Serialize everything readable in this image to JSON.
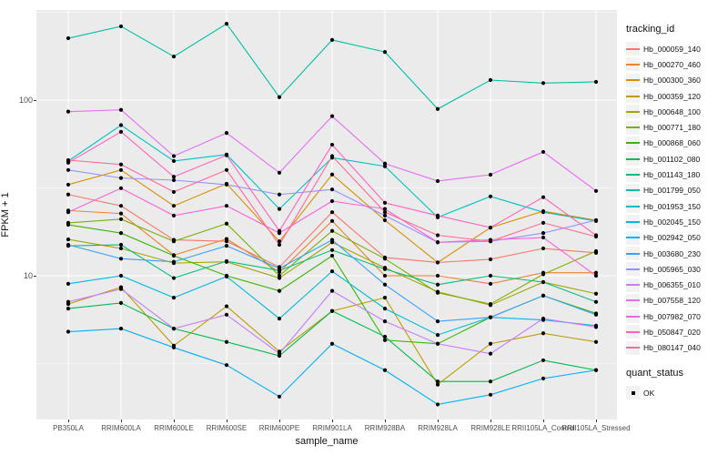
{
  "figure": {
    "y_axis": {
      "label": "FPKM + 1",
      "ticks": [
        "100",
        "10"
      ]
    },
    "x_axis": {
      "label": "sample_name"
    },
    "legend": {
      "tracking_title": "tracking_id",
      "quant_title": "quant_status",
      "quant_ok_label": "OK"
    }
  },
  "colors": {
    "panel_bg": "#EBEBEB",
    "grid_major": "#FFFFFF",
    "grid_minor": "#F5F5F5",
    "point": "#000000",
    "legend_key_bg": "#F2F2F2",
    "tick_text": "#4D4D4D",
    "title_text": "#111111"
  },
  "chart_data": {
    "type": "line",
    "title": "",
    "xlabel": "sample_name",
    "ylabel": "FPKM + 1",
    "y_scale": "log10",
    "ylim": [
      1.5,
      340
    ],
    "y_major_ticks": [
      10,
      100
    ],
    "y_minor_gridlines": [
      3.162,
      31.62,
      316.2
    ],
    "grid": true,
    "legend_position": "right",
    "point_marker": {
      "shape": "dot",
      "color": "#000000",
      "legend_label": "OK"
    },
    "categories": [
      "PB350LA",
      "RRIM600LA",
      "RRIM600LE",
      "RRIM600SE",
      "RRIM600PE",
      "RRIM901LA",
      "RRIM928BA",
      "RRIM928LA",
      "RRIM928LE",
      "RRII105LA_Control",
      "RRII105LA_Stressed"
    ],
    "series": [
      {
        "name": "Hb_000059_140",
        "color": "#F8766D",
        "values": [
          29,
          25,
          16,
          15.7,
          11.2,
          23,
          12.7,
          11.9,
          12.4,
          14.3,
          13.5
        ]
      },
      {
        "name": "Hb_000270_460",
        "color": "#EA8331",
        "values": [
          23.5,
          22.6,
          13.1,
          16.2,
          10.5,
          20.5,
          10,
          10,
          9,
          10.4,
          10.4
        ]
      },
      {
        "name": "Hb_000300_360",
        "color": "#D89000",
        "values": [
          33,
          40,
          25,
          33.4,
          15.7,
          37.7,
          20.7,
          11.9,
          18.8,
          23.3,
          20.7
        ]
      },
      {
        "name": "Hb_000359_120",
        "color": "#C09B00",
        "values": [
          6.9,
          8.6,
          4.0,
          6.7,
          3.7,
          6.3,
          7.5,
          2.4,
          4.1,
          4.7,
          4.2
        ]
      },
      {
        "name": "Hb_000648_100",
        "color": "#A3A500",
        "values": [
          16.1,
          14.3,
          11.8,
          12,
          9.7,
          15.5,
          11.1,
          8.1,
          6.8,
          9.2,
          7.9
        ]
      },
      {
        "name": "Hb_000771_180",
        "color": "#7CAE00",
        "values": [
          20,
          21,
          15.7,
          19.8,
          10,
          18,
          12.5,
          8,
          6.9,
          10.2,
          13.8
        ]
      },
      {
        "name": "Hb_000868_060",
        "color": "#39B600",
        "values": [
          19.5,
          17.5,
          13,
          10,
          8.2,
          13,
          4.3,
          4.1,
          5.8,
          7.7,
          6.1
        ]
      },
      {
        "name": "Hb_001102_080",
        "color": "#00BB4E",
        "values": [
          6.5,
          7,
          5,
          4.2,
          3.5,
          6.3,
          4.5,
          2.5,
          2.5,
          3.3,
          2.9
        ]
      },
      {
        "name": "Hb_001143_180",
        "color": "#00BF7D",
        "values": [
          14.8,
          15,
          9.7,
          12.1,
          10.7,
          14,
          10.9,
          8.9,
          10,
          9.2,
          7.1
        ]
      },
      {
        "name": "Hb_001799_050",
        "color": "#00C1A3",
        "values": [
          225,
          263,
          177,
          272,
          104,
          220,
          188,
          89,
          130,
          125,
          127
        ]
      },
      {
        "name": "Hb_001953_150",
        "color": "#00BFC4",
        "values": [
          45,
          72,
          45,
          49,
          24,
          47,
          42,
          21.5,
          28.3,
          23,
          20.5
        ]
      },
      {
        "name": "Hb_002045_150",
        "color": "#00BAE0",
        "values": [
          9,
          10,
          7.5,
          9.9,
          5.7,
          10.6,
          6.5,
          4.6,
          5.8,
          5.6,
          5.2
        ]
      },
      {
        "name": "Hb_002942_050",
        "color": "#00B0F6",
        "values": [
          4.8,
          5,
          3.9,
          3.1,
          2.05,
          4.1,
          2.9,
          1.85,
          2.1,
          2.6,
          2.9
        ]
      },
      {
        "name": "Hb_003680_230",
        "color": "#35A2FF",
        "values": [
          15,
          12.5,
          12,
          14.8,
          11,
          16,
          8.9,
          5.5,
          5.8,
          7.7,
          6
        ]
      },
      {
        "name": "Hb_005965_030",
        "color": "#9590FF",
        "values": [
          40,
          36,
          35,
          33,
          29,
          31,
          22,
          15.5,
          15.7,
          17.5,
          20.7
        ]
      },
      {
        "name": "Hb_006355_010",
        "color": "#C77CFF",
        "values": [
          7.1,
          8.4,
          5,
          6,
          3.6,
          8.2,
          5.5,
          4.1,
          3.6,
          5.7,
          5.1
        ]
      },
      {
        "name": "Hb_007558_120",
        "color": "#E76BF3",
        "values": [
          86,
          88,
          48,
          65,
          38.6,
          81,
          43.5,
          34.6,
          37.6,
          50.7,
          30.4
        ]
      },
      {
        "name": "Hb_007982_070",
        "color": "#FA62DB",
        "values": [
          23,
          31.5,
          22,
          25,
          17.5,
          26.6,
          24,
          15.5,
          16,
          16.5,
          10
        ]
      },
      {
        "name": "Hb_050847_020",
        "color": "#FF62BC",
        "values": [
          44,
          66,
          36.6,
          48.5,
          18,
          55.7,
          26,
          22,
          18.8,
          28,
          17
        ]
      },
      {
        "name": "Hb_080147_040",
        "color": "#FF6A98",
        "values": [
          45.5,
          43,
          30,
          40,
          15,
          48,
          23,
          17,
          15.7,
          20,
          16.7
        ]
      }
    ]
  }
}
